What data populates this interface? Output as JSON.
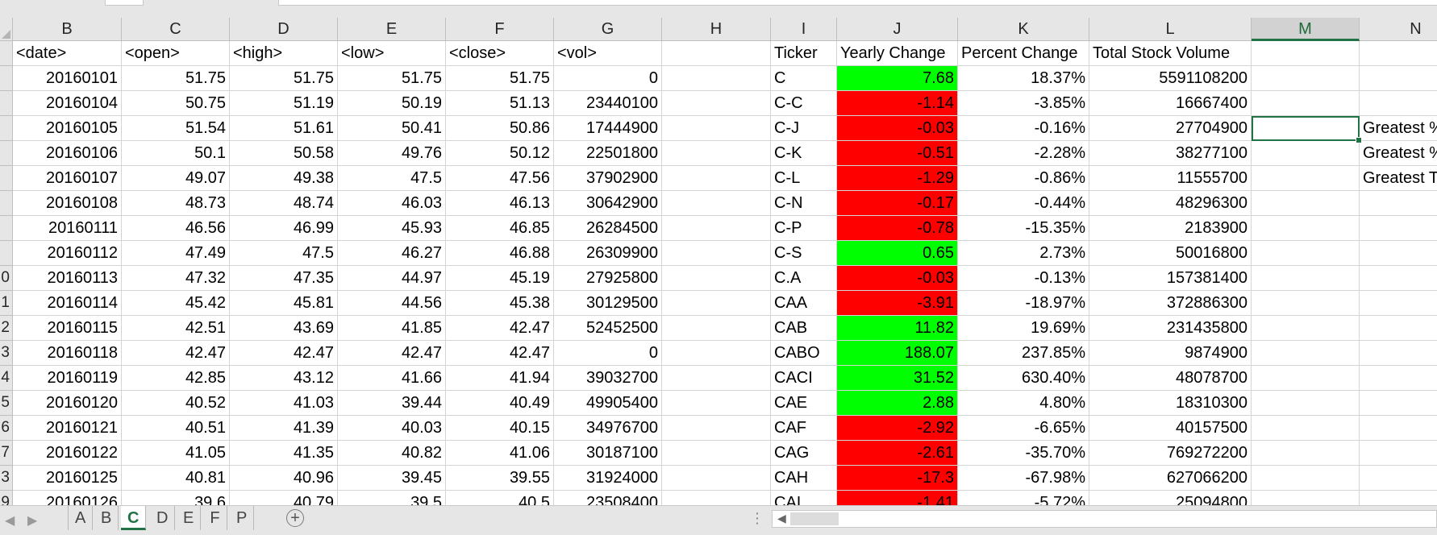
{
  "columns": [
    "B",
    "C",
    "D",
    "E",
    "F",
    "G",
    "H",
    "I",
    "J",
    "K",
    "L",
    "M",
    "N"
  ],
  "selected_column": "M",
  "header_row": {
    "B": "<date>",
    "C": "<open>",
    "D": "<high>",
    "E": "<low>",
    "F": "<close>",
    "G": "<vol>",
    "H": "",
    "I": "Ticker",
    "J": "Yearly Change",
    "K": "Percent Change",
    "L": "Total Stock Volume",
    "M": "",
    "N": ""
  },
  "row_numbers": [
    "",
    "",
    "",
    "",
    "",
    "",
    "",
    "",
    "",
    "0",
    "1",
    "2",
    "3",
    "4",
    "5",
    "6",
    "7",
    "3",
    "9"
  ],
  "rows": [
    {
      "B": "20160101",
      "C": "51.75",
      "D": "51.75",
      "E": "51.75",
      "F": "51.75",
      "G": "0",
      "I": "C",
      "J": "7.68",
      "K": "18.37%",
      "L": "5591108200",
      "N": "",
      "J_color": "green"
    },
    {
      "B": "20160104",
      "C": "50.75",
      "D": "51.19",
      "E": "50.19",
      "F": "51.13",
      "G": "23440100",
      "I": "C-C",
      "J": "-1.14",
      "K": "-3.85%",
      "L": "16667400",
      "N": "",
      "J_color": "red"
    },
    {
      "B": "20160105",
      "C": "51.54",
      "D": "51.61",
      "E": "50.41",
      "F": "50.86",
      "G": "17444900",
      "I": "C-J",
      "J": "-0.03",
      "K": "-0.16%",
      "L": "27704900",
      "N": "Greatest %",
      "J_color": "red"
    },
    {
      "B": "20160106",
      "C": "50.1",
      "D": "50.58",
      "E": "49.76",
      "F": "50.12",
      "G": "22501800",
      "I": "C-K",
      "J": "-0.51",
      "K": "-2.28%",
      "L": "38277100",
      "N": "Greatest %",
      "J_color": "red"
    },
    {
      "B": "20160107",
      "C": "49.07",
      "D": "49.38",
      "E": "47.5",
      "F": "47.56",
      "G": "37902900",
      "I": "C-L",
      "J": "-1.29",
      "K": "-0.86%",
      "L": "11555700",
      "N": "Greatest T",
      "J_color": "red"
    },
    {
      "B": "20160108",
      "C": "48.73",
      "D": "48.74",
      "E": "46.03",
      "F": "46.13",
      "G": "30642900",
      "I": "C-N",
      "J": "-0.17",
      "K": "-0.44%",
      "L": "48296300",
      "N": "",
      "J_color": "red"
    },
    {
      "B": "20160111",
      "C": "46.56",
      "D": "46.99",
      "E": "45.93",
      "F": "46.85",
      "G": "26284500",
      "I": "C-P",
      "J": "-0.78",
      "K": "-15.35%",
      "L": "2183900",
      "N": "",
      "J_color": "red"
    },
    {
      "B": "20160112",
      "C": "47.49",
      "D": "47.5",
      "E": "46.27",
      "F": "46.88",
      "G": "26309900",
      "I": "C-S",
      "J": "0.65",
      "K": "2.73%",
      "L": "50016800",
      "N": "",
      "J_color": "green"
    },
    {
      "B": "20160113",
      "C": "47.32",
      "D": "47.35",
      "E": "44.97",
      "F": "45.19",
      "G": "27925800",
      "I": "C.A",
      "J": "-0.03",
      "K": "-0.13%",
      "L": "157381400",
      "N": "",
      "J_color": "red"
    },
    {
      "B": "20160114",
      "C": "45.42",
      "D": "45.81",
      "E": "44.56",
      "F": "45.38",
      "G": "30129500",
      "I": "CAA",
      "J": "-3.91",
      "K": "-18.97%",
      "L": "372886300",
      "N": "",
      "J_color": "red"
    },
    {
      "B": "20160115",
      "C": "42.51",
      "D": "43.69",
      "E": "41.85",
      "F": "42.47",
      "G": "52452500",
      "I": "CAB",
      "J": "11.82",
      "K": "19.69%",
      "L": "231435800",
      "N": "",
      "J_color": "green"
    },
    {
      "B": "20160118",
      "C": "42.47",
      "D": "42.47",
      "E": "42.47",
      "F": "42.47",
      "G": "0",
      "I": "CABO",
      "J": "188.07",
      "K": "237.85%",
      "L": "9874900",
      "N": "",
      "J_color": "green"
    },
    {
      "B": "20160119",
      "C": "42.85",
      "D": "43.12",
      "E": "41.66",
      "F": "41.94",
      "G": "39032700",
      "I": "CACI",
      "J": "31.52",
      "K": "630.40%",
      "L": "48078700",
      "N": "",
      "J_color": "green"
    },
    {
      "B": "20160120",
      "C": "40.52",
      "D": "41.03",
      "E": "39.44",
      "F": "40.49",
      "G": "49905400",
      "I": "CAE",
      "J": "2.88",
      "K": "4.80%",
      "L": "18310300",
      "N": "",
      "J_color": "green"
    },
    {
      "B": "20160121",
      "C": "40.51",
      "D": "41.39",
      "E": "40.03",
      "F": "40.15",
      "G": "34976700",
      "I": "CAF",
      "J": "-2.92",
      "K": "-6.65%",
      "L": "40157500",
      "N": "",
      "J_color": "red"
    },
    {
      "B": "20160122",
      "C": "41.05",
      "D": "41.35",
      "E": "40.82",
      "F": "41.06",
      "G": "30187100",
      "I": "CAG",
      "J": "-2.61",
      "K": "-35.70%",
      "L": "769272200",
      "N": "",
      "J_color": "red"
    },
    {
      "B": "20160125",
      "C": "40.81",
      "D": "40.96",
      "E": "39.45",
      "F": "39.55",
      "G": "31924000",
      "I": "CAH",
      "J": "-17.3",
      "K": "-67.98%",
      "L": "627066200",
      "N": "",
      "J_color": "red"
    },
    {
      "B": "20160126",
      "C": "39.6",
      "D": "40.79",
      "E": "39.5",
      "F": "40.5",
      "G": "23508400",
      "I": "CAI",
      "J": "-1.41",
      "K": "-5.72%",
      "L": "25094800",
      "N": "",
      "J_color": "red"
    }
  ],
  "sheets": {
    "tabs": [
      "A",
      "B",
      "C",
      "D",
      "E",
      "F",
      "P"
    ],
    "active": "C",
    "add_label": "+"
  },
  "colors": {
    "positive": "#00ff00",
    "negative": "#ff0000",
    "accent": "#217346"
  }
}
